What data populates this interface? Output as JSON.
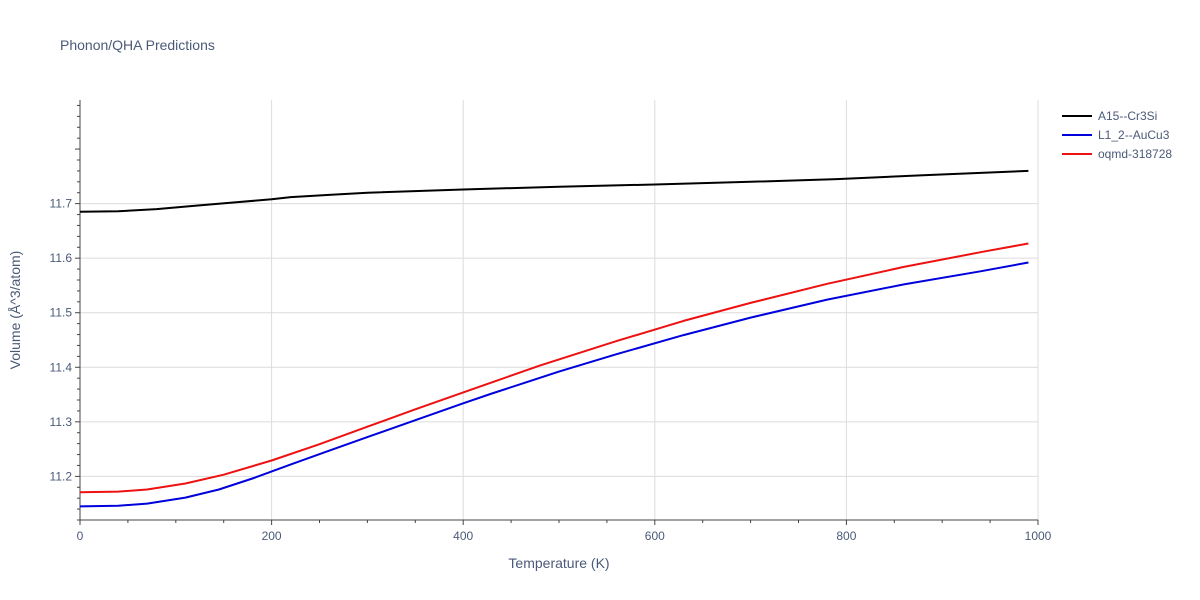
{
  "chart_data": {
    "type": "line",
    "title": "Phonon/QHA Predictions",
    "xlabel": "Temperature (K)",
    "ylabel": "Volume (Å^3/atom)",
    "xlim": [
      0,
      1000
    ],
    "ylim": [
      11.12,
      11.89
    ],
    "xticks": [
      0,
      200,
      400,
      600,
      800,
      1000
    ],
    "yticks": [
      11.2,
      11.3,
      11.4,
      11.5,
      11.6,
      11.7
    ],
    "grid": true,
    "legend_position": "top-right",
    "series": [
      {
        "name": "A15--Cr3Si",
        "color": "#000000",
        "x": [
          0,
          40,
          80,
          120,
          160,
          200,
          220,
          260,
          300,
          400,
          500,
          600,
          700,
          790,
          880,
          990
        ],
        "y": [
          11.685,
          11.686,
          11.69,
          11.696,
          11.702,
          11.708,
          11.712,
          11.716,
          11.72,
          11.726,
          11.731,
          11.735,
          11.74,
          11.745,
          11.752,
          11.76
        ]
      },
      {
        "name": "L1_2--AuCu3",
        "color": "#0000dd",
        "x": [
          0,
          40,
          70,
          110,
          145,
          180,
          220,
          260,
          300,
          350,
          400,
          430,
          500,
          560,
          630,
          700,
          780,
          860,
          940,
          990
        ],
        "y": [
          11.145,
          11.146,
          11.15,
          11.161,
          11.176,
          11.196,
          11.222,
          11.247,
          11.272,
          11.303,
          11.334,
          11.352,
          11.392,
          11.424,
          11.459,
          11.491,
          11.524,
          11.552,
          11.576,
          11.592
        ]
      },
      {
        "name": "oqmd-318728",
        "color": "#ee1111",
        "x": [
          0,
          40,
          70,
          110,
          150,
          200,
          250,
          300,
          350,
          400,
          480,
          560,
          630,
          700,
          780,
          860,
          940,
          990
        ],
        "y": [
          11.171,
          11.172,
          11.176,
          11.187,
          11.203,
          11.229,
          11.259,
          11.291,
          11.323,
          11.354,
          11.403,
          11.448,
          11.485,
          11.518,
          11.553,
          11.584,
          11.611,
          11.627
        ]
      }
    ]
  }
}
